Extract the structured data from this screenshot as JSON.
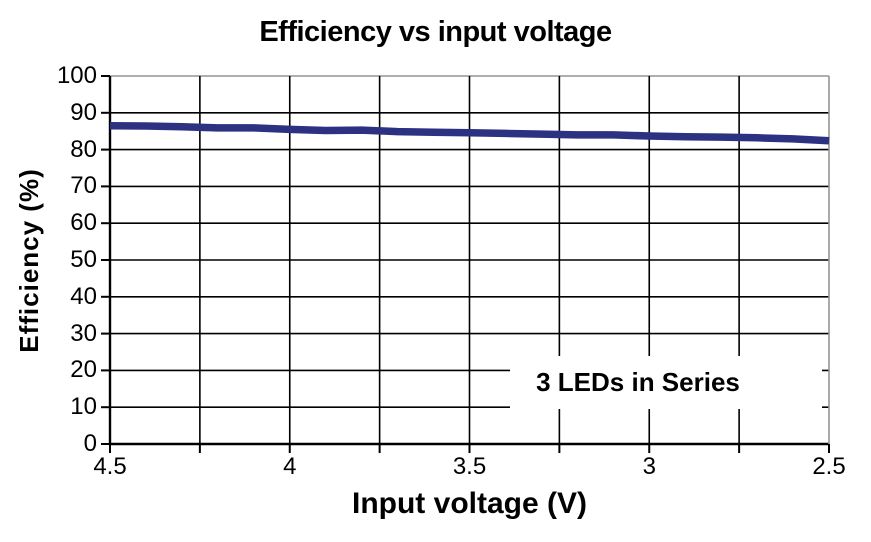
{
  "chart": {
    "title": "Efficiency vs input voltage",
    "x_axis_label": "Input voltage (V)",
    "y_axis_label": "Efficiency (%)",
    "annotation": "3 LEDs in Series"
  },
  "chart_data": {
    "type": "line",
    "title": "Efficiency vs input voltage",
    "xlabel": "Input voltage (V)",
    "ylabel": "Efficiency (%)",
    "annotation": "3 LEDs in Series",
    "x_axis_reversed": true,
    "xlim": [
      4.5,
      2.5
    ],
    "ylim": [
      0,
      100
    ],
    "x_major_ticks": [
      4.5,
      4,
      3.5,
      3,
      2.5
    ],
    "x_grid_step": 0.25,
    "y_tick_step": 10,
    "grid": true,
    "legend": "none",
    "colors": {
      "line": "#2d3182",
      "grid": "#000000",
      "plot_border": "#949494",
      "background": "#ffffff",
      "text": "#000000"
    },
    "series": [
      {
        "name": "Efficiency",
        "color": "#2d3182",
        "x": [
          4.5,
          4.4,
          4.3,
          4.2,
          4.1,
          4.0,
          3.9,
          3.8,
          3.7,
          3.6,
          3.5,
          3.4,
          3.3,
          3.2,
          3.1,
          3.0,
          2.9,
          2.8,
          2.7,
          2.6,
          2.5
        ],
        "y": [
          86.5,
          86.4,
          86.2,
          85.9,
          85.9,
          85.5,
          85.2,
          85.3,
          84.9,
          84.7,
          84.6,
          84.4,
          84.2,
          84.0,
          84.0,
          83.7,
          83.5,
          83.4,
          83.2,
          82.9,
          82.4
        ]
      }
    ]
  }
}
